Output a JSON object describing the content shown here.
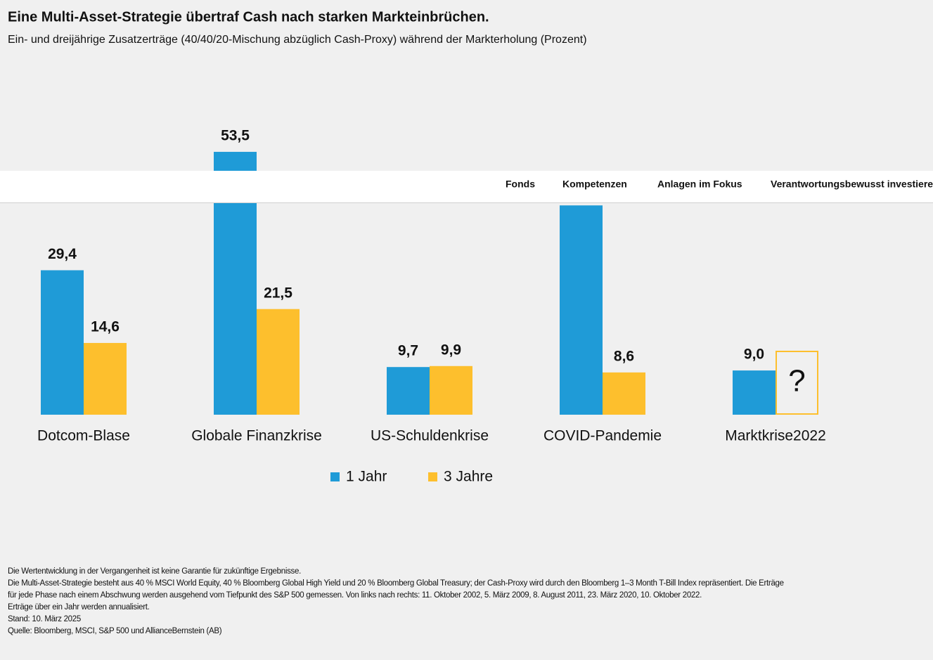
{
  "chart_data": {
    "type": "bar",
    "title": "Eine Multi-Asset-Strategie übertraf Cash nach starken Markteinbrüchen.",
    "subtitle": "Ein- und dreijährige Zusatzerträge (40/40/20-Mischung abzüglich Cash-Proxy) während der Markterholung (Prozent)",
    "categories": [
      "Dotcom-Blase",
      "Globale Finanzkrise",
      "US-Schuldenkrise",
      "COVID-Pandemie",
      "Marktkrise2022"
    ],
    "series": [
      {
        "name": "1 Jahr",
        "color": "#1f9bd7",
        "values": [
          29.4,
          53.5,
          9.7,
          42.6,
          9.0
        ],
        "value_labels": [
          "29,4",
          "53,5",
          "9,7",
          null,
          "9,0"
        ]
      },
      {
        "name": "3 Jahre",
        "color": "#fdbf2d",
        "values": [
          14.6,
          21.5,
          9.9,
          8.6,
          null
        ],
        "value_labels": [
          "14,6",
          "21,5",
          "9,9",
          "8,6",
          null
        ]
      }
    ],
    "placeholder_label": "?",
    "ylim": [
      0,
      60
    ],
    "notes": [
      "Die Wertentwicklung in der Vergangenheit ist keine Garantie für zukünftige Ergebnisse.",
      "Die Multi-Asset-Strategie besteht aus 40 % MSCI World Equity, 40 % Bloomberg Global High Yield und 20 % Bloomberg Global Treasury; der Cash-Proxy wird durch den Bloomberg 1–3 Month T-Bill Index repräsentiert. Die Erträge",
      "für jede Phase nach einem Abschwung werden ausgehend vom Tiefpunkt des S&P 500 gemessen. Von links nach rechts: 11. Oktober 2002, 5. März 2009, 8. August 2011, 23. März 2020, 10. Oktober 2022.",
      "Erträge über ein Jahr werden annualisiert.",
      "Stand: 10. März 2025",
      "Quelle: Bloomberg, MSCI, S&P 500 und AllianceBernstein (AB)"
    ]
  },
  "nav": {
    "items": [
      "Fonds",
      "Kompetenzen",
      "Anlagen im Fokus",
      "Verantwortungsbewusst investieren"
    ]
  }
}
